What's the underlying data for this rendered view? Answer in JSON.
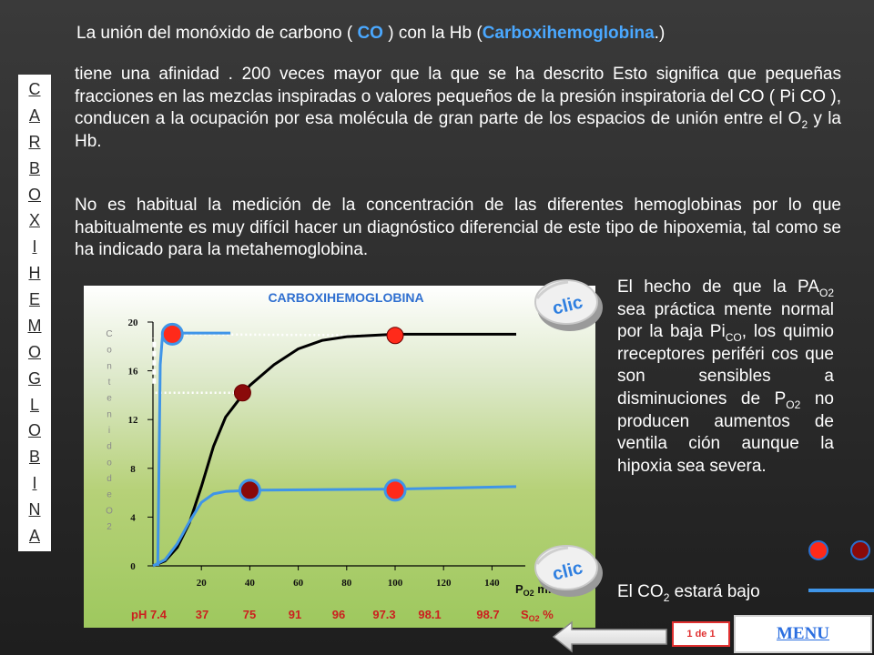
{
  "title": {
    "pre": "La unión del monóxido de carbono ( ",
    "co": "CO",
    "mid": " ) con la Hb (",
    "carboxi": "Carboxihemoglobina",
    "post": ".)"
  },
  "paragraph1": {
    "part1": "tiene una afinidad . 200 veces mayor que la que se ha descrito Esto significa que pequeñas fracciones en las mezclas inspiradas o valores pequeños de la presión inspiratoria  del CO ( Pi CO ), conducen a la ocupación por esa molécula de gran parte de los espacios de unión entre el O",
    "sub": "2",
    "part2": " y la Hb."
  },
  "paragraph2": "No es habitual la medición de la concentración de las diferentes hemoglobinas por lo que habitualmente es muy difícil hacer un diagnóstico diferencial de este tipo de hipoxemia, tal como se ha indicado para la metahemoglobina.",
  "vertical_title": [
    "C",
    "A",
    "R",
    "B",
    "O",
    "X",
    "I",
    "H",
    "E",
    "M",
    "O",
    "G",
    "L",
    "O",
    "B",
    "I",
    "N",
    "A"
  ],
  "side_text": {
    "t1": "El hecho de que la PA",
    "s1": "O2",
    "t2": " sea práctica mente normal por la baja Pi",
    "s2": "CO",
    "t3": ", los quimio rreceptores periféri cos que son sensibles a disminuciones de P",
    "s3": "O2",
    "t4": " no producen aumentos de ventila ción aunque la hipoxia sea severa."
  },
  "co2_text": {
    "pre": "El CO",
    "sub": "2",
    "post": " estará bajo"
  },
  "clic_label": "clic",
  "page_badge": "1 de 1",
  "menu_label": "MENU",
  "colors": {
    "accent_blue": "#4aa8ff",
    "curve_blue": "#3f95e8",
    "dot_red": "#ff2a1a",
    "dot_dark": "#8a0a0a"
  },
  "chart_data": {
    "type": "line",
    "title": "CARBOXIHEMOGLOBINA",
    "ylabel": "Contenido de O2",
    "xlabel_main": "P",
    "xlabel_sub": "O2",
    "xlabel_unit": " mmHg",
    "ph_label": "pH 7.4",
    "saturation": [
      "37",
      "75",
      "91",
      "96",
      "97.3",
      "98.1",
      "98.7"
    ],
    "saturation_label_main": "S",
    "saturation_label_sub": "O2",
    "saturation_label_unit": " %",
    "x_ticks": [
      20,
      40,
      60,
      80,
      100,
      120,
      140
    ],
    "y_ticks": [
      0,
      4,
      8,
      12,
      16,
      20
    ],
    "xlim": [
      0,
      150
    ],
    "ylim": [
      0,
      20
    ],
    "series": [
      {
        "color": "#000000",
        "points": [
          [
            0,
            0
          ],
          [
            5,
            0.4
          ],
          [
            10,
            1.5
          ],
          [
            15,
            3.5
          ],
          [
            20,
            6.5
          ],
          [
            25,
            9.8
          ],
          [
            30,
            12.2
          ],
          [
            40,
            14.8
          ],
          [
            50,
            16.5
          ],
          [
            60,
            17.8
          ],
          [
            70,
            18.5
          ],
          [
            80,
            18.8
          ],
          [
            90,
            18.9
          ],
          [
            100,
            19.0
          ],
          [
            150,
            19.0
          ]
        ]
      },
      {
        "color": "#3f95e8",
        "points": [
          [
            0,
            0
          ],
          [
            5,
            0.5
          ],
          [
            10,
            1.8
          ],
          [
            15,
            3.6
          ],
          [
            20,
            5.2
          ],
          [
            25,
            5.9
          ],
          [
            30,
            6.1
          ],
          [
            40,
            6.2
          ],
          [
            100,
            6.3
          ],
          [
            150,
            6.5
          ]
        ]
      },
      {
        "color": "#3f95e8",
        "points": [
          [
            2,
            0
          ],
          [
            3,
            16.5
          ],
          [
            4,
            19.0
          ],
          [
            10,
            19.1
          ],
          [
            32,
            19.1
          ]
        ]
      }
    ],
    "markers": [
      {
        "x": 8,
        "y": 19.0,
        "fill": "#ff2a1a",
        "ring": "#3f95e8"
      },
      {
        "x": 37,
        "y": 14.2,
        "fill": "#8a0a0a",
        "ring": "none"
      },
      {
        "x": 100,
        "y": 18.9,
        "fill": "#ff2a1a",
        "ring": "none"
      },
      {
        "x": 40,
        "y": 6.2,
        "fill": "#8a0a0a",
        "ring": "#3f95e8"
      },
      {
        "x": 100,
        "y": 6.2,
        "fill": "#ff2a1a",
        "ring": "#3f95e8"
      }
    ]
  }
}
